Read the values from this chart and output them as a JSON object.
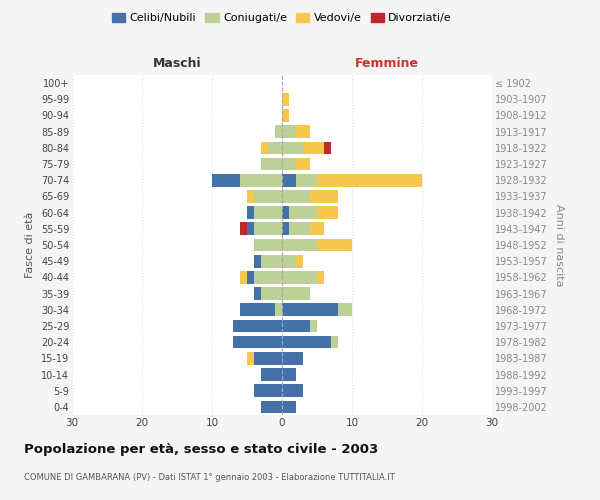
{
  "age_groups": [
    "0-4",
    "5-9",
    "10-14",
    "15-19",
    "20-24",
    "25-29",
    "30-34",
    "35-39",
    "40-44",
    "45-49",
    "50-54",
    "55-59",
    "60-64",
    "65-69",
    "70-74",
    "75-79",
    "80-84",
    "85-89",
    "90-94",
    "95-99",
    "100+"
  ],
  "birth_years": [
    "1998-2002",
    "1993-1997",
    "1988-1992",
    "1983-1987",
    "1978-1982",
    "1973-1977",
    "1968-1972",
    "1963-1967",
    "1958-1962",
    "1953-1957",
    "1948-1952",
    "1943-1947",
    "1938-1942",
    "1933-1937",
    "1928-1932",
    "1923-1927",
    "1918-1922",
    "1913-1917",
    "1908-1912",
    "1903-1907",
    "≤ 1902"
  ],
  "males": {
    "celibi": [
      3,
      4,
      3,
      4,
      7,
      7,
      5,
      1,
      1,
      1,
      0,
      1,
      1,
      0,
      4,
      0,
      0,
      0,
      0,
      0,
      0
    ],
    "coniugati": [
      0,
      0,
      0,
      0,
      0,
      0,
      1,
      3,
      4,
      3,
      4,
      4,
      4,
      4,
      6,
      3,
      2,
      1,
      0,
      0,
      0
    ],
    "vedovi": [
      0,
      0,
      0,
      1,
      0,
      0,
      0,
      0,
      1,
      0,
      0,
      0,
      0,
      1,
      0,
      0,
      1,
      0,
      0,
      0,
      0
    ],
    "divorziati": [
      0,
      0,
      0,
      0,
      0,
      0,
      0,
      0,
      0,
      0,
      0,
      1,
      0,
      0,
      0,
      0,
      0,
      0,
      0,
      0,
      0
    ]
  },
  "females": {
    "nubili": [
      2,
      3,
      2,
      3,
      7,
      4,
      8,
      0,
      0,
      0,
      0,
      1,
      1,
      0,
      2,
      0,
      0,
      0,
      0,
      0,
      0
    ],
    "coniugate": [
      0,
      0,
      0,
      0,
      1,
      1,
      2,
      4,
      5,
      2,
      5,
      3,
      4,
      4,
      3,
      2,
      3,
      2,
      0,
      0,
      0
    ],
    "vedove": [
      0,
      0,
      0,
      0,
      0,
      0,
      0,
      0,
      1,
      1,
      5,
      2,
      3,
      4,
      15,
      2,
      3,
      2,
      1,
      1,
      0
    ],
    "divorziate": [
      0,
      0,
      0,
      0,
      0,
      0,
      0,
      0,
      0,
      0,
      0,
      0,
      0,
      0,
      0,
      0,
      1,
      0,
      0,
      0,
      0
    ]
  },
  "colors": {
    "celibi_nubili": "#4472a8",
    "coniugati": "#bdd098",
    "vedovi": "#f5c84c",
    "divorziati": "#c0292b"
  },
  "xlim": 30,
  "title": "Popolazione per età, sesso e stato civile - 2003",
  "subtitle": "COMUNE DI GAMBARANA (PV) - Dati ISTAT 1° gennaio 2003 - Elaborazione TUTTITALIA.IT",
  "xlabel_left": "Maschi",
  "xlabel_right": "Femmine",
  "ylabel_left": "Fasce di età",
  "ylabel_right": "Anni di nascita",
  "legend_labels": [
    "Celibi/Nubili",
    "Coniugati/e",
    "Vedovi/e",
    "Divorziati/e"
  ],
  "bg_color": "#f5f5f5",
  "plot_bg": "#ffffff",
  "grid_color": "#dddddd"
}
